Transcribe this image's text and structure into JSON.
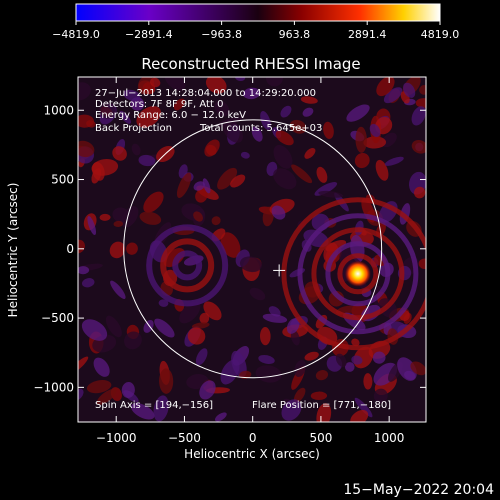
{
  "colorbar": {
    "ticks": [
      "−4819.0",
      "−2891.4",
      "−963.8",
      "963.8",
      "2891.4",
      "4819.0"
    ],
    "range": [
      -4819.0,
      4819.0
    ],
    "colors": [
      "#0000ff",
      "#6a00c8",
      "#1a0010",
      "#8a0000",
      "#ff3000",
      "#ffd000",
      "#ffffff"
    ]
  },
  "title": "Reconstructed RHESSI Image",
  "annotations": {
    "time_range": "27−Jul−2013 14:28:04.000 to 14:29:20.000",
    "detectors": "Detectors: 7F 8F 9F, Att 0",
    "energy_range": "Energy Range: 6.0 − 12.0 keV",
    "method": "Back Projection",
    "total_counts": "Total counts: 5.645e+03",
    "spin_axis": "Spin Axis = [194,−156]",
    "flare_position": "Flare Position = [771,−180]"
  },
  "footer_date": "15−May−2022 20:04",
  "chart_data": {
    "type": "heatmap",
    "title": "Reconstructed RHESSI Image",
    "xlabel": "Heliocentric X (arcsec)",
    "ylabel": "Heliocentric Y (arcsec)",
    "xlim": [
      -1280,
      1270
    ],
    "ylim": [
      -1250,
      1240
    ],
    "x_ticks": [
      -1000,
      -500,
      0,
      500,
      1000
    ],
    "y_ticks": [
      1000,
      500,
      0,
      -500,
      -1000
    ],
    "x_tick_labels": [
      "−1000",
      "−500",
      "0",
      "500",
      "1000"
    ],
    "y_tick_labels": [
      "1000",
      "500",
      "0",
      "−500",
      "−1000"
    ],
    "solar_disk": {
      "center": [
        0,
        0
      ],
      "radius_arcsec": 945
    },
    "spin_axis": [
      194,
      -156
    ],
    "flare_position": [
      771,
      -180
    ],
    "peak_value": 4819.0,
    "min_value": -4819.0
  }
}
